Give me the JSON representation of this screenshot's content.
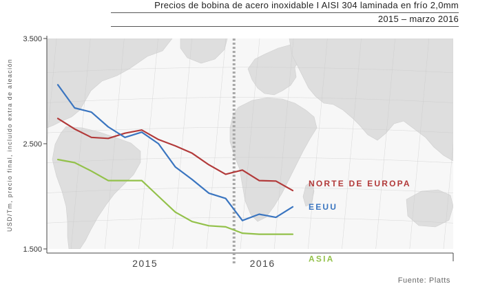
{
  "title": "Precios de bobina de acero inoxidable I AISI 304 laminada en frío 2,0mm",
  "subtitle": "2015 – marzo 2016",
  "source": "Fuente: Platts",
  "colors": {
    "map_land": "#dedede",
    "map_sea": "#f7f7f7",
    "grid": "#c9c9c9",
    "divider": "#a8a8a8"
  },
  "chart_data": {
    "type": "line",
    "title": "Precios de bobina de acero inoxidable I AISI 304 laminada en frío 2,0mm",
    "subtitle": "2015 – marzo 2016",
    "ylabel": "USD/Tm, precio final, incluido extra de aleación",
    "xlabel": "",
    "ylim": [
      1500,
      3500
    ],
    "yticks": [
      {
        "value": 3500,
        "label": "3.500"
      },
      {
        "value": 2500,
        "label": "2.500"
      },
      {
        "value": 1500,
        "label": "1.500"
      }
    ],
    "periods": [
      "2015-01",
      "2015-02",
      "2015-03",
      "2015-04",
      "2015-05",
      "2015-06",
      "2015-07",
      "2015-08",
      "2015-09",
      "2015-10",
      "2015-11",
      "2015-12",
      "2016-01",
      "2016-02",
      "2016-03"
    ],
    "xlim": [
      "2015-01",
      "2016-03"
    ],
    "x_axis_labels": [
      {
        "label": "2015",
        "period": "2015-07"
      },
      {
        "label": "2016",
        "period": "2016-02"
      }
    ],
    "year_divider": "2015-12",
    "grid": false,
    "series": [
      {
        "name": "NORTE DE EUROPA",
        "color": "#b23a3a",
        "values": [
          2740,
          2640,
          2560,
          2550,
          2600,
          2630,
          2540,
          2480,
          2410,
          2300,
          2210,
          2250,
          2150,
          2145,
          2055
        ]
      },
      {
        "name": "EEUU",
        "color": "#3a75c0",
        "values": [
          3060,
          2840,
          2800,
          2660,
          2560,
          2610,
          2500,
          2280,
          2160,
          2030,
          1980,
          1770,
          1830,
          1800,
          1900
        ]
      },
      {
        "name": "ASIA",
        "color": "#93c14a",
        "values": [
          2350,
          2320,
          2240,
          2150,
          2150,
          2150,
          2000,
          1850,
          1760,
          1720,
          1710,
          1650,
          1640,
          1640,
          1640
        ]
      }
    ]
  }
}
